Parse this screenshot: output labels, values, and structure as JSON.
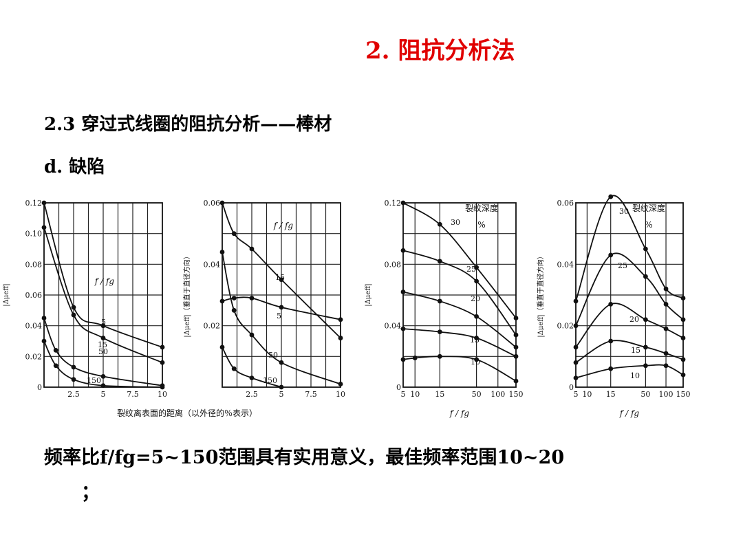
{
  "slide": {
    "title": "2. 阻抗分析法",
    "subtitle": "2.3 穿过式线圈的阻抗分析——棒材",
    "item": "d.  缺陷",
    "summary": "频率比f/fg=5~150范围具有实用意义，最佳频率范围10~20",
    "summary_end": "；"
  },
  "colors": {
    "title": "#e00000",
    "ink": "#111111",
    "grid": "#222222"
  },
  "chart_data": [
    {
      "type": "line",
      "ylabel": "|Δμeff|",
      "xlabel": "裂纹离表面的距离（以外径的％表示）",
      "annotation": "f / fg",
      "xlim": [
        0,
        10
      ],
      "ylim": [
        0,
        0.12
      ],
      "xticks": [
        "2.5",
        "5",
        "7.5",
        "10"
      ],
      "yticks": [
        "0",
        "0.02",
        "0.04",
        "0.06",
        "0.08",
        "0.10",
        "0.12"
      ],
      "series": [
        {
          "name": "5",
          "x": [
            0,
            2.5,
            5,
            10
          ],
          "y": [
            0.12,
            0.052,
            0.04,
            0.026
          ]
        },
        {
          "name": "15",
          "x": [
            0,
            2.5,
            5,
            10
          ],
          "y": [
            0.104,
            0.047,
            0.032,
            0.016
          ]
        },
        {
          "name": "50",
          "x": [
            0,
            1,
            2.5,
            5,
            10
          ],
          "y": [
            0.045,
            0.024,
            0.013,
            0.007,
            0.001
          ]
        },
        {
          "name": "150",
          "x": [
            0,
            1,
            2.5,
            5,
            10
          ],
          "y": [
            0.03,
            0.014,
            0.005,
            0.001,
            0.0
          ]
        }
      ]
    },
    {
      "type": "line",
      "ylabel": "|Δμeff|（垂直于直径方向）",
      "annotation": "f / fg",
      "xlim": [
        0,
        10
      ],
      "ylim": [
        0,
        0.06
      ],
      "xticks": [
        "2.5",
        "5",
        "7.5",
        "10"
      ],
      "yticks": [
        "0.02",
        "0.04",
        "0.06"
      ],
      "series": [
        {
          "name": "15",
          "x": [
            0,
            1,
            2.5,
            5,
            10
          ],
          "y": [
            0.06,
            0.05,
            0.045,
            0.035,
            0.016
          ]
        },
        {
          "name": "5",
          "x": [
            0,
            1,
            2.5,
            5,
            10
          ],
          "y": [
            0.028,
            0.029,
            0.029,
            0.026,
            0.022
          ]
        },
        {
          "name": "50",
          "x": [
            0,
            1,
            2.5,
            5,
            10
          ],
          "y": [
            0.044,
            0.025,
            0.017,
            0.008,
            0.001
          ]
        },
        {
          "name": "150",
          "x": [
            0,
            1,
            2.5,
            5
          ],
          "y": [
            0.013,
            0.006,
            0.003,
            0.0
          ]
        }
      ]
    },
    {
      "type": "line",
      "ylabel": "|Δμeff|",
      "xlabel": "f / fg",
      "legend_title": "裂纹深度",
      "legend_unit": "%",
      "xlim": [
        5,
        150
      ],
      "ylim": [
        0,
        0.12
      ],
      "xticks": [
        "5",
        "10",
        "15",
        "50",
        "100",
        "150"
      ],
      "yticks": [
        "0",
        "0.04",
        "0.08",
        "0.12"
      ],
      "series": [
        {
          "name": "30",
          "x": [
            5,
            15,
            50,
            150
          ],
          "y": [
            0.12,
            0.106,
            0.078,
            0.045
          ]
        },
        {
          "name": "25",
          "x": [
            5,
            15,
            50,
            150
          ],
          "y": [
            0.089,
            0.082,
            0.069,
            0.034
          ]
        },
        {
          "name": "20",
          "x": [
            5,
            15,
            50,
            150
          ],
          "y": [
            0.062,
            0.056,
            0.046,
            0.026
          ]
        },
        {
          "name": "15",
          "x": [
            5,
            15,
            50,
            150
          ],
          "y": [
            0.038,
            0.036,
            0.032,
            0.02
          ]
        },
        {
          "name": "10",
          "x": [
            5,
            10,
            15,
            50,
            150
          ],
          "y": [
            0.018,
            0.019,
            0.02,
            0.018,
            0.004
          ]
        }
      ]
    },
    {
      "type": "line",
      "ylabel": "|Δμeff|（垂直于直径方向）",
      "xlabel": "f / fg",
      "legend_title": "裂纹深度",
      "legend_unit": "%",
      "xlim": [
        5,
        150
      ],
      "ylim": [
        0,
        0.06
      ],
      "xticks": [
        "5",
        "10",
        "15",
        "50",
        "100",
        "150"
      ],
      "yticks": [
        "0",
        "0.02",
        "0.04",
        "0.06"
      ],
      "series": [
        {
          "name": "30",
          "x": [
            5,
            15,
            50,
            100,
            150
          ],
          "y": [
            0.028,
            0.062,
            0.045,
            0.032,
            0.029
          ]
        },
        {
          "name": "25",
          "x": [
            5,
            15,
            50,
            100,
            150
          ],
          "y": [
            0.02,
            0.043,
            0.036,
            0.027,
            0.022
          ]
        },
        {
          "name": "20",
          "x": [
            5,
            15,
            50,
            100,
            150
          ],
          "y": [
            0.013,
            0.027,
            0.022,
            0.019,
            0.016
          ]
        },
        {
          "name": "15",
          "x": [
            5,
            15,
            50,
            100,
            150
          ],
          "y": [
            0.008,
            0.015,
            0.013,
            0.011,
            0.009
          ]
        },
        {
          "name": "10",
          "x": [
            5,
            15,
            50,
            100,
            150
          ],
          "y": [
            0.003,
            0.006,
            0.007,
            0.007,
            0.004
          ]
        }
      ]
    }
  ]
}
